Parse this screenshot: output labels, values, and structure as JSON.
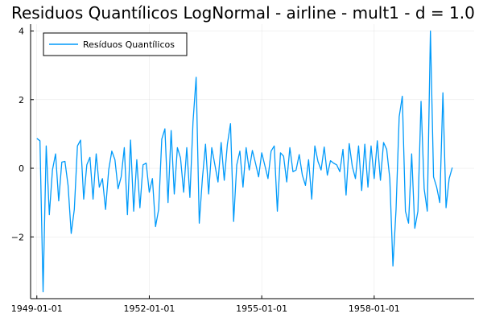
{
  "chart_data": {
    "type": "line",
    "title": "Residuos Quantílicos LogNormal - airline - mult1 - d = 1.0",
    "xlabel": "",
    "ylabel": "",
    "x_start": "1949-01-01",
    "x_step": "1 month",
    "xlim": [
      "1948-11-01",
      "1960-09-01"
    ],
    "ylim": [
      -3.8,
      4.2
    ],
    "x_ticks": [
      "1949-01-01",
      "1952-01-01",
      "1955-01-01",
      "1958-01-01"
    ],
    "y_ticks": [
      -2,
      0,
      2,
      4
    ],
    "y_tick_labels": [
      "−2",
      "0",
      "2",
      "4"
    ],
    "grid": true,
    "legend_position": "top-left",
    "series": [
      {
        "name": "Resíduos Quantílicos",
        "color": "#009AFA",
        "values": [
          0.87,
          0.8,
          -3.6,
          0.65,
          -1.35,
          -0.05,
          0.42,
          -0.95,
          0.18,
          0.2,
          -0.5,
          -1.9,
          -1.2,
          0.65,
          0.82,
          -0.9,
          0.1,
          0.32,
          -0.9,
          0.42,
          -0.55,
          -0.3,
          -1.2,
          -0.05,
          0.5,
          0.25,
          -0.6,
          -0.25,
          0.6,
          -1.35,
          0.82,
          -1.25,
          0.25,
          -1.15,
          0.1,
          0.15,
          -0.7,
          -0.3,
          -1.7,
          -1.2,
          0.85,
          1.15,
          -1.0,
          1.1,
          -0.75,
          0.6,
          0.3,
          -0.7,
          0.6,
          -0.85,
          1.35,
          2.65,
          -1.6,
          -0.3,
          0.7,
          -0.75,
          0.6,
          0.1,
          -0.4,
          0.75,
          -0.35,
          0.7,
          1.3,
          -1.55,
          0.1,
          0.5,
          -0.55,
          0.6,
          -0.05,
          0.52,
          0.15,
          -0.25,
          0.45,
          0.08,
          -0.3,
          0.5,
          0.65,
          -1.25,
          0.45,
          0.35,
          -0.4,
          0.6,
          -0.1,
          -0.05,
          0.4,
          -0.2,
          -0.5,
          0.25,
          -0.9,
          0.65,
          0.2,
          -0.05,
          0.62,
          -0.2,
          0.22,
          0.15,
          0.1,
          -0.1,
          0.55,
          -0.78,
          0.72,
          0.05,
          -0.3,
          0.65,
          -0.65,
          0.7,
          -0.55,
          0.65,
          -0.3,
          0.8,
          -0.35,
          0.75,
          0.55,
          -0.3,
          -2.85,
          -1.2,
          1.5,
          2.1,
          -1.25,
          -1.6,
          0.42,
          -1.75,
          -1.25,
          1.95,
          -0.6,
          -1.25,
          4.0,
          -0.25,
          -0.55,
          -1.0,
          2.2,
          -1.15,
          -0.3,
          0.02
        ]
      }
    ]
  }
}
